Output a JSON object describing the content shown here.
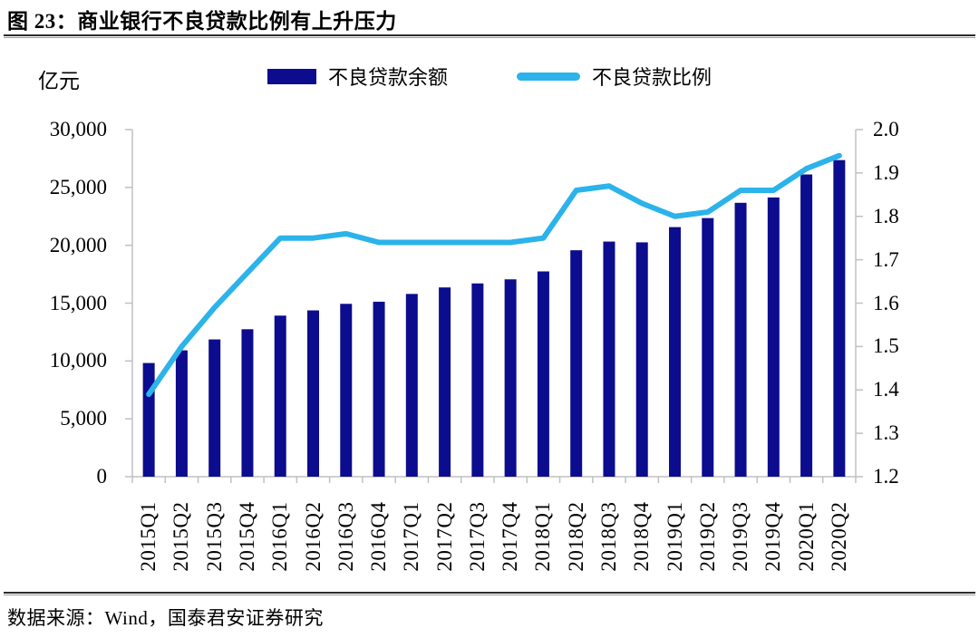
{
  "header": {
    "figure_label": "图 23：",
    "title_text": "商业银行不良贷款比例有上升压力"
  },
  "legend": {
    "balance_label": "不良贷款余额",
    "ratio_label": "不良贷款比例"
  },
  "unit_label": "亿元",
  "footer": {
    "source": "数据来源：Wind，国泰君安证券研究"
  },
  "colors": {
    "bar": "#0C0C8E",
    "line": "#2BB3EA",
    "axis": "#C0C0C0",
    "text": "#000000",
    "rule_dark": "#2B2B2B",
    "rule_light": "#9A9A9A"
  },
  "chart_data": {
    "type": "bar+line combo",
    "title": "商业银行不良贷款比例有上升压力",
    "legend_position": "top",
    "grid": false,
    "categories": [
      "2015Q1",
      "2015Q2",
      "2015Q3",
      "2015Q4",
      "2016Q1",
      "2016Q2",
      "2016Q3",
      "2016Q4",
      "2017Q1",
      "2017Q2",
      "2017Q3",
      "2017Q4",
      "2018Q1",
      "2018Q2",
      "2018Q3",
      "2018Q4",
      "2019Q1",
      "2019Q2",
      "2019Q3",
      "2019Q4",
      "2020Q1",
      "2020Q2"
    ],
    "series": [
      {
        "name": "不良贷款余额",
        "type": "bar",
        "axis": "left",
        "values": [
          9825,
          10919,
          11863,
          12744,
          13921,
          14373,
          14939,
          15123,
          15795,
          16358,
          16704,
          17057,
          17742,
          19571,
          20322,
          20254,
          21571,
          22352,
          23672,
          24135,
          26121,
          27364
        ]
      },
      {
        "name": "不良贷款比例",
        "type": "line",
        "axis": "right",
        "values": [
          1.39,
          1.5,
          1.59,
          1.67,
          1.75,
          1.75,
          1.76,
          1.74,
          1.74,
          1.74,
          1.74,
          1.74,
          1.75,
          1.86,
          1.87,
          1.83,
          1.8,
          1.81,
          1.86,
          1.86,
          1.91,
          1.94
        ]
      }
    ],
    "left_axis": {
      "label": "亿元",
      "min": 0,
      "max": 30000,
      "tick_labels": [
        "0",
        "5,000",
        "10,000",
        "15,000",
        "20,000",
        "25,000",
        "30,000"
      ]
    },
    "right_axis": {
      "min": 1.2,
      "max": 2.0,
      "tick_labels": [
        "1.2",
        "1.3",
        "1.4",
        "1.5",
        "1.6",
        "1.7",
        "1.8",
        "1.9",
        "2.0"
      ]
    }
  }
}
